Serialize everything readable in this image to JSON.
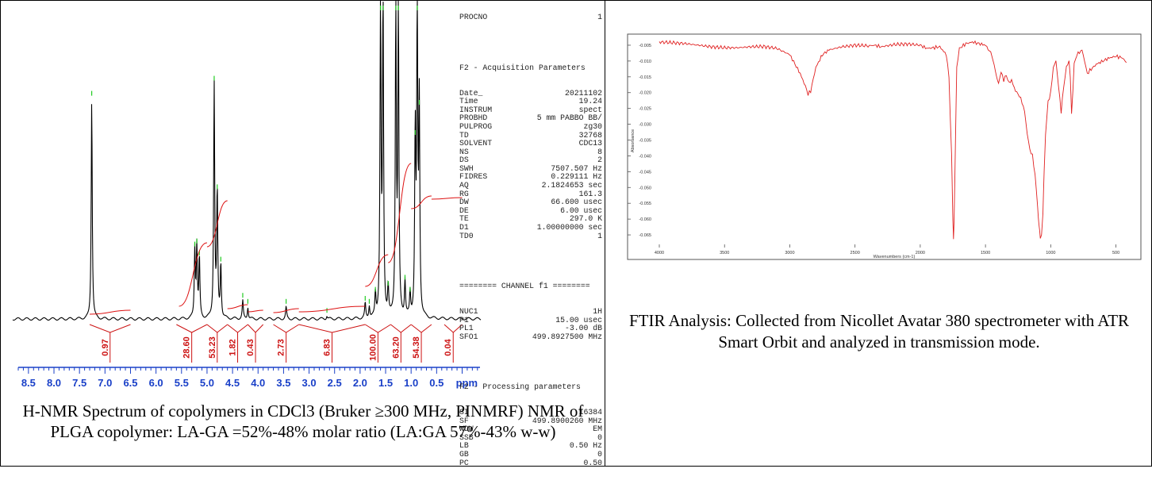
{
  "nmr": {
    "caption": "H-NMR Spectrum of copolymers in CDCl3 (Bruker ≥300 MHz, PINMRF) NMR of PLGA copolymer: LA-GA =52%-48% molar ratio (LA:GA 57%-43% w-w)",
    "acquisition_header": "F2 - Acquisition Parameters",
    "acquisition_params": [
      {
        "k": "Date_",
        "v": "20211102"
      },
      {
        "k": "Time",
        "v": "19.24"
      },
      {
        "k": "INSTRUM",
        "v": "spect"
      },
      {
        "k": "PROBHD",
        "v": "5 mm PABBO BB/"
      },
      {
        "k": "PULPROG",
        "v": "zg30"
      },
      {
        "k": "TD",
        "v": "32768"
      },
      {
        "k": "SOLVENT",
        "v": "CDC13"
      },
      {
        "k": "NS",
        "v": "8"
      },
      {
        "k": "DS",
        "v": "2"
      },
      {
        "k": "SWH",
        "v": "7507.507 Hz"
      },
      {
        "k": "FIDRES",
        "v": "0.229111 Hz"
      },
      {
        "k": "AQ",
        "v": "2.1824653 sec"
      },
      {
        "k": "RG",
        "v": "161.3"
      },
      {
        "k": "DW",
        "v": "66.600 usec"
      },
      {
        "k": "DE",
        "v": "6.00 usec"
      },
      {
        "k": "TE",
        "v": "297.0 K"
      },
      {
        "k": "D1",
        "v": "1.00000000 sec"
      },
      {
        "k": "TD0",
        "v": "1"
      }
    ],
    "channel_header": "======== CHANNEL f1 ========",
    "channel_params": [
      {
        "k": "NUC1",
        "v": "1H"
      },
      {
        "k": "P1",
        "v": "15.00 usec"
      },
      {
        "k": "PL1",
        "v": "-3.00 dB"
      },
      {
        "k": "SFO1",
        "v": "499.8927500 MHz"
      }
    ],
    "processing_header": "F2 - Processing parameters",
    "processing_params": [
      {
        "k": "SI",
        "v": "16384"
      },
      {
        "k": "SF",
        "v": "499.8900260 MHz"
      },
      {
        "k": "WDW",
        "v": "EM"
      },
      {
        "k": "SSB",
        "v": "0"
      },
      {
        "k": "LB",
        "v": "0.50 Hz"
      },
      {
        "k": "GB",
        "v": "0"
      },
      {
        "k": "PC",
        "v": "0.50"
      }
    ],
    "top_fragment_key": "PROCNO",
    "top_fragment_val": "1"
  },
  "ftir": {
    "caption": "FTIR Analysis: Collected from Nicollet Avatar 380 spectrometer with ATR Smart Orbit and analyzed in transmission mode."
  },
  "chart_data": [
    {
      "type": "line",
      "title": "",
      "xlabel": "ppm",
      "ylabel": "",
      "xlim": [
        8.7,
        -0.35
      ],
      "x_reversed": true,
      "x_ticks": [
        "8.5",
        "8.0",
        "7.5",
        "7.0",
        "6.5",
        "6.0",
        "5.5",
        "5.0",
        "4.5",
        "4.0",
        "3.5",
        "3.0",
        "2.5",
        "2.0",
        "1.5",
        "1.0",
        "0.5",
        "ppm"
      ],
      "peaks_ppm": [
        {
          "x": 7.26,
          "h": 0.73
        },
        {
          "x": 5.24,
          "h": 0.23
        },
        {
          "x": 5.2,
          "h": 0.24
        },
        {
          "x": 5.15,
          "h": 0.2
        },
        {
          "x": 4.86,
          "h": 0.78
        },
        {
          "x": 4.8,
          "h": 0.42
        },
        {
          "x": 4.73,
          "h": 0.18
        },
        {
          "x": 4.3,
          "h": 0.06
        },
        {
          "x": 4.2,
          "h": 0.04
        },
        {
          "x": 3.45,
          "h": 0.04
        },
        {
          "x": 2.65,
          "h": 0.01
        },
        {
          "x": 1.9,
          "h": 0.05
        },
        {
          "x": 1.82,
          "h": 0.04
        },
        {
          "x": 1.7,
          "h": 0.08
        },
        {
          "x": 1.6,
          "h": 1.05
        },
        {
          "x": 1.55,
          "h": 1.05
        },
        {
          "x": 1.45,
          "h": 0.1
        },
        {
          "x": 1.3,
          "h": 1.05
        },
        {
          "x": 1.25,
          "h": 1.05
        },
        {
          "x": 1.12,
          "h": 0.12
        },
        {
          "x": 1.02,
          "h": 0.08
        },
        {
          "x": 0.92,
          "h": 0.6
        },
        {
          "x": 0.88,
          "h": 1.05
        },
        {
          "x": 0.84,
          "h": 0.7
        }
      ],
      "integrals": [
        {
          "label": "0.97",
          "from": 7.3,
          "to": 6.5
        },
        {
          "label": "28.60",
          "from": 5.6,
          "to": 5.0
        },
        {
          "label": "53.23",
          "from": 5.0,
          "to": 4.6
        },
        {
          "label": "1.82",
          "from": 4.6,
          "to": 4.2
        },
        {
          "label": "0.43",
          "from": 4.2,
          "to": 3.9
        },
        {
          "label": "2.73",
          "from": 3.7,
          "to": 3.2
        },
        {
          "label": "6.83",
          "from": 3.2,
          "to": 1.9
        },
        {
          "label": "100.00",
          "from": 1.9,
          "to": 1.4
        },
        {
          "label": "63.20",
          "from": 1.4,
          "to": 1.0
        },
        {
          "label": "54.38",
          "from": 1.0,
          "to": 0.6
        },
        {
          "label": "0.04",
          "from": 0.35,
          "to": 0.0
        }
      ]
    },
    {
      "type": "line",
      "title": "",
      "xlabel": "Wavenumbers (cm-1)",
      "ylabel": "Absorbance",
      "xlim": [
        4000,
        400
      ],
      "ylim": [
        -0.068,
        -0.003
      ],
      "x_reversed": true,
      "x_ticks": [
        "4000",
        "3500",
        "3000",
        "2500",
        "2000",
        "1500",
        "1000",
        "500"
      ],
      "y_ticks": [
        "-0.005",
        "-0.010",
        "-0.015",
        "-0.020",
        "-0.025",
        "-0.030",
        "-0.035",
        "-0.040",
        "-0.045",
        "-0.050",
        "-0.055",
        "-0.060",
        "-0.065"
      ],
      "color": "#e02020",
      "x": [
        4000,
        3900,
        3800,
        3700,
        3600,
        3500,
        3400,
        3300,
        3200,
        3100,
        3000,
        2960,
        2920,
        2880,
        2860,
        2840,
        2800,
        2750,
        2700,
        2600,
        2500,
        2400,
        2350,
        2300,
        2200,
        2100,
        2000,
        1950,
        1900,
        1850,
        1800,
        1780,
        1760,
        1750,
        1745,
        1740,
        1730,
        1720,
        1700,
        1650,
        1600,
        1550,
        1500,
        1450,
        1425,
        1400,
        1380,
        1360,
        1340,
        1320,
        1300,
        1280,
        1260,
        1240,
        1220,
        1200,
        1180,
        1160,
        1140,
        1120,
        1100,
        1090,
        1080,
        1070,
        1060,
        1050,
        1040,
        1020,
        1000,
        980,
        960,
        940,
        920,
        900,
        880,
        860,
        850,
        840,
        820,
        800,
        760,
        740,
        720,
        700,
        650,
        600,
        550,
        500,
        450,
        420
      ],
      "y": [
        -0.004,
        -0.0042,
        -0.0045,
        -0.005,
        -0.0055,
        -0.0058,
        -0.0058,
        -0.0055,
        -0.0054,
        -0.006,
        -0.008,
        -0.011,
        -0.014,
        -0.018,
        -0.0205,
        -0.0195,
        -0.012,
        -0.008,
        -0.0065,
        -0.0055,
        -0.005,
        -0.0052,
        -0.005,
        -0.0055,
        -0.0048,
        -0.0046,
        -0.005,
        -0.006,
        -0.0058,
        -0.0055,
        -0.008,
        -0.015,
        -0.04,
        -0.06,
        -0.066,
        -0.06,
        -0.035,
        -0.012,
        -0.006,
        -0.0045,
        -0.004,
        -0.0045,
        -0.005,
        -0.008,
        -0.013,
        -0.017,
        -0.0135,
        -0.016,
        -0.0145,
        -0.017,
        -0.016,
        -0.0185,
        -0.02,
        -0.021,
        -0.023,
        -0.026,
        -0.033,
        -0.038,
        -0.04,
        -0.046,
        -0.056,
        -0.062,
        -0.066,
        -0.065,
        -0.058,
        -0.045,
        -0.033,
        -0.023,
        -0.02,
        -0.012,
        -0.01,
        -0.018,
        -0.026,
        -0.018,
        -0.012,
        -0.01,
        -0.015,
        -0.027,
        -0.011,
        -0.008,
        -0.0065,
        -0.01,
        -0.014,
        -0.013,
        -0.011,
        -0.01,
        -0.009,
        -0.0085,
        -0.009,
        -0.0105
      ]
    }
  ]
}
